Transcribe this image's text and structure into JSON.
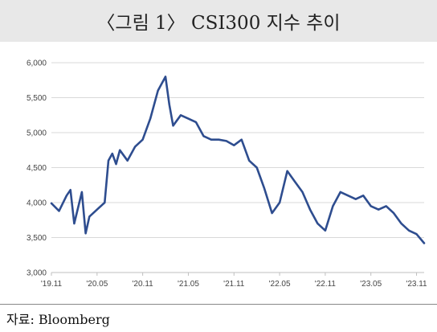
{
  "figure": {
    "title": "〈그림 1〉 CSI300 지수 추이",
    "source": "자료: Bloomberg"
  },
  "chart_data": {
    "type": "line",
    "title": "〈그림 1〉 CSI300 지수 추이",
    "xlabel": "",
    "ylabel": "",
    "ylim": [
      3000,
      6000
    ],
    "xlim": [
      "2019-11",
      "2023-12"
    ],
    "yticks": [
      {
        "value": 3000,
        "label": "3,000"
      },
      {
        "value": 3500,
        "label": "3,500"
      },
      {
        "value": 4000,
        "label": "4,000"
      },
      {
        "value": 4500,
        "label": "4,500"
      },
      {
        "value": 5000,
        "label": "5,000"
      },
      {
        "value": 5500,
        "label": "5,500"
      },
      {
        "value": 6000,
        "label": "6,000"
      }
    ],
    "xticks": [
      {
        "date": "2019-11",
        "label": "'19.11"
      },
      {
        "date": "2020-05",
        "label": "'20.05"
      },
      {
        "date": "2020-11",
        "label": "'20.11"
      },
      {
        "date": "2021-05",
        "label": "'21.05"
      },
      {
        "date": "2021-11",
        "label": "'21.11"
      },
      {
        "date": "2022-05",
        "label": "'22.05"
      },
      {
        "date": "2022-11",
        "label": "'22.11"
      },
      {
        "date": "2023-05",
        "label": "'23.05"
      },
      {
        "date": "2023-11",
        "label": "'23.11"
      }
    ],
    "grid": "horizontal",
    "line_color": "#2e4d8f",
    "series": [
      {
        "x": [
          "2019-11",
          "2019-12",
          "2020-01",
          "2020-01",
          "2020-02",
          "2020-03",
          "2020-03",
          "2020-04",
          "2020-05",
          "2020-06",
          "2020-06",
          "2020-07",
          "2020-07",
          "2020-08",
          "2020-09",
          "2020-10",
          "2020-11",
          "2020-12",
          "2021-01",
          "2021-02",
          "2021-02",
          "2021-03",
          "2021-04",
          "2021-05",
          "2021-06",
          "2021-07",
          "2021-08",
          "2021-09",
          "2021-10",
          "2021-11",
          "2021-12",
          "2022-01",
          "2022-02",
          "2022-03",
          "2022-04",
          "2022-05",
          "2022-06",
          "2022-07",
          "2022-08",
          "2022-09",
          "2022-10",
          "2022-11",
          "2022-12",
          "2023-01",
          "2023-02",
          "2023-03",
          "2023-04",
          "2023-05",
          "2023-06",
          "2023-07",
          "2023-08",
          "2023-09",
          "2023-10",
          "2023-11",
          "2023-12"
        ],
        "values": [
          3990,
          3880,
          4100,
          4180,
          3700,
          4150,
          3560,
          3800,
          3900,
          4000,
          4600,
          4700,
          4550,
          4750,
          4600,
          4800,
          4900,
          5200,
          5600,
          5800,
          5400,
          5100,
          5250,
          5200,
          5150,
          4950,
          4900,
          4900,
          4880,
          4820,
          4900,
          4600,
          4500,
          4200,
          3850,
          4000,
          4450,
          4300,
          4150,
          3900,
          3700,
          3600,
          3950,
          4150,
          4100,
          4050,
          4100,
          3950,
          3900,
          3950,
          3850,
          3700,
          3600,
          3550,
          3420
        ]
      }
    ]
  }
}
